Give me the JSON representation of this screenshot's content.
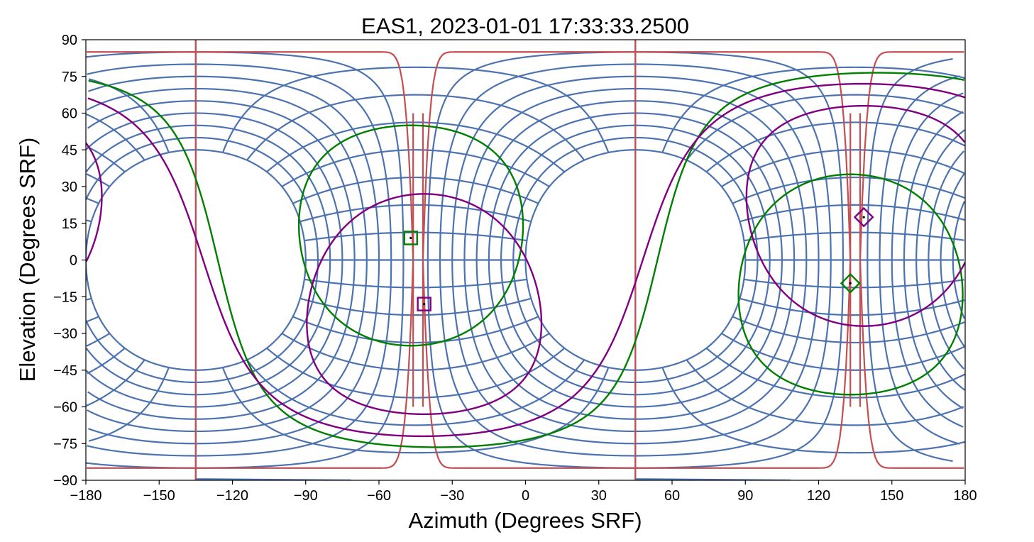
{
  "chart_data": {
    "type": "line",
    "title": "EAS1, 2023-01-01 17:33:33.2500",
    "xlabel": "Azimuth (Degrees SRF)",
    "ylabel": "Elevation (Degrees SRF)",
    "xlim": [
      -180,
      180
    ],
    "ylim": [
      -90,
      90
    ],
    "xticks": [
      "−180",
      "−150",
      "−120",
      "−90",
      "−60",
      "−30",
      "0",
      "30",
      "60",
      "90",
      "120",
      "150",
      "180"
    ],
    "yticks": [
      "−90",
      "−75",
      "−60",
      "−45",
      "−30",
      "−15",
      "0",
      "15",
      "30",
      "45",
      "60",
      "75",
      "90"
    ],
    "xtick_values": [
      -180,
      -150,
      -120,
      -90,
      -60,
      -30,
      0,
      30,
      60,
      90,
      120,
      150,
      180
    ],
    "ytick_values": [
      -90,
      -75,
      -60,
      -45,
      -30,
      -15,
      0,
      15,
      30,
      45,
      60,
      75,
      90
    ],
    "colors": {
      "grid_blue": "#4c72b0",
      "boundary_red": "#c44e52",
      "green": "#007f00",
      "purple": "#800080"
    },
    "coordinate_grid": {
      "pole_azimuths": [
        -135,
        45
      ],
      "ring_radii_deg": [
        45,
        50,
        55,
        60,
        65,
        70,
        75,
        80,
        85
      ],
      "spoke_step_deg": 11.25
    },
    "red_boundaries": {
      "horizontal_elevation": 85,
      "vertical_azimuths": [
        -46,
        -42,
        133,
        137
      ]
    },
    "great_circles": [
      {
        "color": "green",
        "pole_lon": -36,
        "pole_lat": 13.5
      },
      {
        "color": "purple",
        "pole_lon": -42,
        "pole_lat": 18
      }
    ],
    "small_circles": [
      {
        "color": "green",
        "center_lon": -46.9,
        "center_lat": 10,
        "radius_deg": 45
      },
      {
        "color": "green",
        "center_lon": 133.1,
        "center_lat": -10,
        "radius_deg": 45
      },
      {
        "color": "purple",
        "center_lon": -41.5,
        "center_lat": -18,
        "radius_deg": 45
      },
      {
        "color": "purple",
        "center_lon": 138.5,
        "center_lat": 18,
        "radius_deg": 45
      }
    ],
    "markers": [
      {
        "shape": "square",
        "color": "green",
        "azimuth": -47,
        "elevation": 9
      },
      {
        "shape": "square",
        "color": "purple",
        "azimuth": -41.5,
        "elevation": -18
      },
      {
        "shape": "diamond",
        "color": "purple",
        "azimuth": 138.5,
        "elevation": 17.5
      },
      {
        "shape": "diamond",
        "color": "green",
        "azimuth": 133,
        "elevation": -9.5
      }
    ]
  }
}
